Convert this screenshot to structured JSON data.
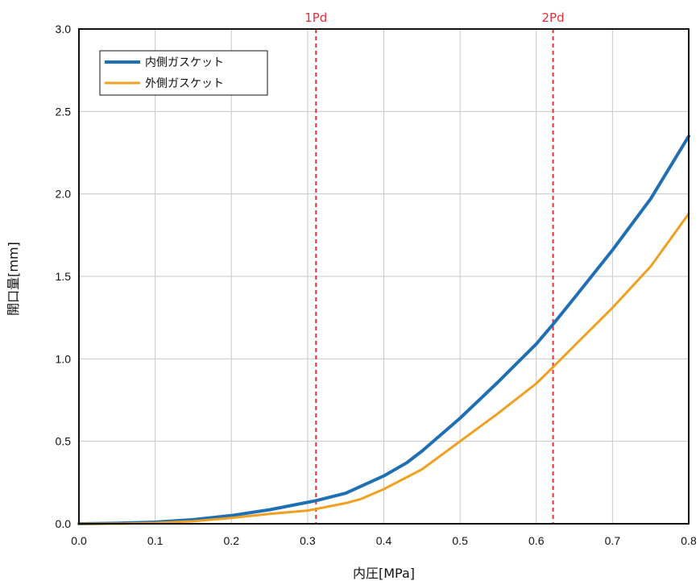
{
  "chart_data": {
    "type": "line",
    "xlabel": "内圧[MPa]",
    "ylabel": "開口量[mm]",
    "xlim": [
      0,
      0.8
    ],
    "ylim": [
      0,
      3.0
    ],
    "x_ticks": [
      "0.0",
      "0.1",
      "0.2",
      "0.3",
      "0.4",
      "0.5",
      "0.6",
      "0.7",
      "0.8"
    ],
    "y_ticks": [
      "0.0",
      "0.5",
      "1.0",
      "1.5",
      "2.0",
      "2.5",
      "3.0"
    ],
    "grid": true,
    "legend_position": "top-left",
    "reference_lines": [
      {
        "label": "1Pd",
        "x": 0.311,
        "color": "#e8303a"
      },
      {
        "label": "2Pd",
        "x": 0.622,
        "color": "#e8303a"
      }
    ],
    "series": [
      {
        "name": "内側ガスケット",
        "color": "#1f6fb5",
        "points": [
          [
            0,
            0
          ],
          [
            0.05,
            0.003
          ],
          [
            0.1,
            0.01
          ],
          [
            0.15,
            0.025
          ],
          [
            0.2,
            0.05
          ],
          [
            0.25,
            0.085
          ],
          [
            0.3,
            0.13
          ],
          [
            0.311,
            0.14
          ],
          [
            0.35,
            0.185
          ],
          [
            0.4,
            0.29
          ],
          [
            0.43,
            0.37
          ],
          [
            0.45,
            0.44
          ],
          [
            0.5,
            0.64
          ],
          [
            0.55,
            0.86
          ],
          [
            0.6,
            1.09
          ],
          [
            0.622,
            1.21
          ],
          [
            0.65,
            1.37
          ],
          [
            0.7,
            1.66
          ],
          [
            0.75,
            1.97
          ],
          [
            0.8,
            2.35
          ]
        ]
      },
      {
        "name": "外側ガスケット",
        "color": "#f0a020",
        "points": [
          [
            0,
            0
          ],
          [
            0.05,
            0.0
          ],
          [
            0.1,
            0.005
          ],
          [
            0.15,
            0.015
          ],
          [
            0.2,
            0.035
          ],
          [
            0.25,
            0.06
          ],
          [
            0.3,
            0.08
          ],
          [
            0.311,
            0.09
          ],
          [
            0.35,
            0.125
          ],
          [
            0.37,
            0.15
          ],
          [
            0.4,
            0.21
          ],
          [
            0.45,
            0.33
          ],
          [
            0.5,
            0.5
          ],
          [
            0.55,
            0.67
          ],
          [
            0.6,
            0.85
          ],
          [
            0.622,
            0.95
          ],
          [
            0.65,
            1.08
          ],
          [
            0.7,
            1.31
          ],
          [
            0.75,
            1.56
          ],
          [
            0.8,
            1.88
          ]
        ]
      }
    ]
  }
}
